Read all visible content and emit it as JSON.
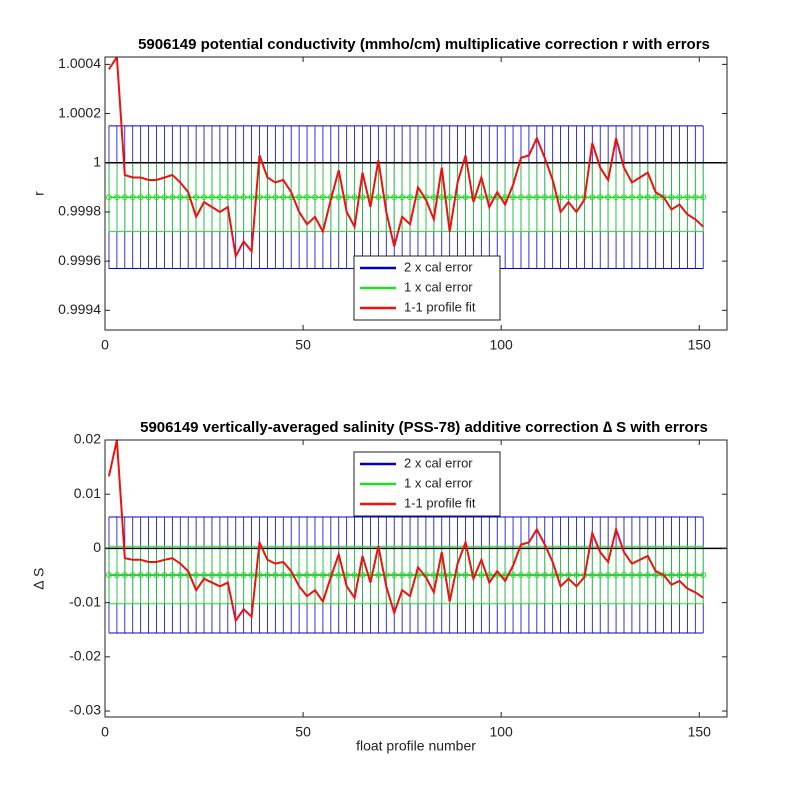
{
  "chart_data": [
    {
      "type": "errorband_line",
      "title": "5906149 potential conductivity (mmho/cm) multiplicative correction r with errors",
      "ylabel": "r",
      "x": [
        1,
        3,
        5,
        7,
        9,
        11,
        13,
        15,
        17,
        19,
        21,
        23,
        25,
        27,
        29,
        31,
        33,
        35,
        37,
        39,
        41,
        43,
        45,
        47,
        49,
        51,
        53,
        55,
        57,
        59,
        61,
        63,
        65,
        67,
        69,
        71,
        73,
        75,
        77,
        79,
        81,
        83,
        85,
        87,
        89,
        91,
        93,
        95,
        97,
        99,
        101,
        103,
        105,
        107,
        109,
        111,
        113,
        115,
        117,
        119,
        121,
        123,
        125,
        127,
        129,
        131,
        133,
        135,
        137,
        139,
        141,
        143,
        145,
        147,
        149,
        151
      ],
      "xlim": [
        0,
        157
      ],
      "xticks": [
        0,
        50,
        100,
        150
      ],
      "ylim": [
        0.99932,
        1.00043
      ],
      "yticks": [
        0.9994,
        0.9996,
        0.9998,
        1,
        1.0002,
        1.0004
      ],
      "hline": 1,
      "hline_color": "#000000",
      "legend": "lower center",
      "series": [
        {
          "name": "2 x cal error",
          "kind": "errorbar",
          "color": "#0000cc",
          "value": 0.99986,
          "error": 0.00029
        },
        {
          "name": "1 x cal error",
          "kind": "errorbar",
          "color": "#22dd22",
          "value": 0.99986,
          "error": 0.00014
        },
        {
          "name": "1-1 profile fit",
          "kind": "line",
          "color": "#ee1111",
          "values": [
            1.00038,
            1.00043,
            0.99995,
            0.99994,
            0.99994,
            0.99993,
            0.99993,
            0.99994,
            0.99995,
            0.99992,
            0.99988,
            0.99978,
            0.99984,
            0.99982,
            0.9998,
            0.99982,
            0.99962,
            0.99968,
            0.99964,
            1.00003,
            0.99994,
            0.99992,
            0.99993,
            0.99988,
            0.9998,
            0.99975,
            0.99978,
            0.99972,
            0.99985,
            0.99997,
            0.9998,
            0.99974,
            0.99996,
            0.99982,
            1.00001,
            0.9998,
            0.99966,
            0.99978,
            0.99975,
            0.9999,
            0.99985,
            0.99977,
            0.99998,
            0.99972,
            0.99992,
            1.00003,
            0.99984,
            0.99994,
            0.99982,
            0.99988,
            0.99983,
            0.99991,
            1.00002,
            1.00003,
            1.0001,
            1.00002,
            0.99993,
            0.9998,
            0.99984,
            0.9998,
            0.99985,
            1.00008,
            0.99998,
            0.99993,
            1.0001,
            0.99998,
            0.99992,
            0.99994,
            0.99996,
            0.99988,
            0.99986,
            0.99981,
            0.99983,
            0.99979,
            0.99977,
            0.99974
          ]
        }
      ]
    },
    {
      "type": "errorband_line",
      "title": "5906149 vertically-averaged salinity (PSS-78) additive correction ∆ S with errors",
      "ylabel": "∆ S",
      "xlabel": "float profile number",
      "x": [
        1,
        3,
        5,
        7,
        9,
        11,
        13,
        15,
        17,
        19,
        21,
        23,
        25,
        27,
        29,
        31,
        33,
        35,
        37,
        39,
        41,
        43,
        45,
        47,
        49,
        51,
        53,
        55,
        57,
        59,
        61,
        63,
        65,
        67,
        69,
        71,
        73,
        75,
        77,
        79,
        81,
        83,
        85,
        87,
        89,
        91,
        93,
        95,
        97,
        99,
        101,
        103,
        105,
        107,
        109,
        111,
        113,
        115,
        117,
        119,
        121,
        123,
        125,
        127,
        129,
        131,
        133,
        135,
        137,
        139,
        141,
        143,
        145,
        147,
        149,
        151
      ],
      "xlim": [
        0,
        157
      ],
      "xticks": [
        0,
        50,
        100,
        150
      ],
      "ylim": [
        -0.0311,
        0.02
      ],
      "yticks": [
        -0.03,
        -0.02,
        -0.01,
        0,
        0.01,
        0.02
      ],
      "hline": 0,
      "hline_color": "#000000",
      "legend": "upper center",
      "series": [
        {
          "name": "2 x cal error",
          "kind": "errorbar",
          "color": "#0000cc",
          "value": -0.0049,
          "error": 0.0107
        },
        {
          "name": "1 x cal error",
          "kind": "errorbar",
          "color": "#22dd22",
          "value": -0.0049,
          "error": 0.0053
        },
        {
          "name": "1-1 profile fit",
          "kind": "line",
          "color": "#ee1111",
          "values": [
            0.0133,
            0.02,
            -0.0018,
            -0.0021,
            -0.0021,
            -0.0025,
            -0.0025,
            -0.0021,
            -0.0018,
            -0.0028,
            -0.0042,
            -0.0077,
            -0.0056,
            -0.0063,
            -0.007,
            -0.0063,
            -0.0133,
            -0.0112,
            -0.0126,
            0.0011,
            -0.0021,
            -0.0028,
            -0.0025,
            -0.0042,
            -0.007,
            -0.0088,
            -0.0077,
            -0.0098,
            -0.0053,
            -0.0011,
            -0.007,
            -0.0091,
            -0.0014,
            -0.0063,
            0.0004,
            -0.007,
            -0.0119,
            -0.0077,
            -0.0088,
            -0.0035,
            -0.0053,
            -0.0081,
            -0.0007,
            -0.0098,
            -0.0028,
            0.0011,
            -0.0056,
            -0.0021,
            -0.0063,
            -0.0042,
            -0.006,
            -0.0032,
            0.0007,
            0.0011,
            0.0035,
            0.0007,
            -0.0025,
            -0.007,
            -0.0056,
            -0.007,
            -0.0053,
            0.0028,
            -0.0007,
            -0.0025,
            0.0035,
            -0.0007,
            -0.0028,
            -0.0021,
            -0.0014,
            -0.0042,
            -0.0049,
            -0.0067,
            -0.006,
            -0.0074,
            -0.0081,
            -0.0091
          ]
        }
      ]
    }
  ]
}
